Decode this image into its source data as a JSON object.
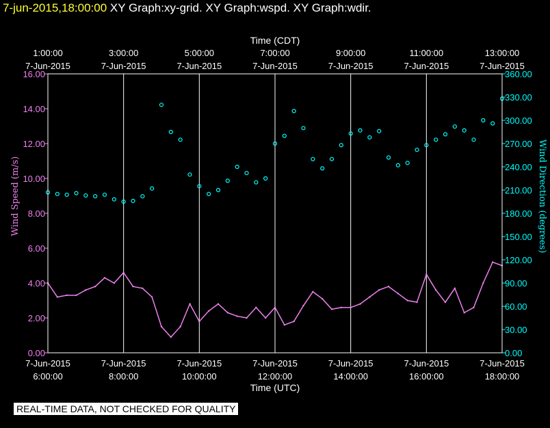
{
  "header": {
    "timestamp": "7-jun-2015,18:00:00",
    "graphs": "XY Graph:xy-grid.  XY Graph:wspd.  XY Graph:wdir."
  },
  "footer": {
    "disclaimer": "REAL-TIME DATA, NOT CHECKED FOR QUALITY"
  },
  "colors": {
    "background": "#000000",
    "frame": "#ffffff",
    "grid": "#ffffff",
    "wind_speed": "#ee82ee",
    "wind_direction": "#00ffff",
    "header_timestamp": "#ffff33"
  },
  "chart_data": {
    "type": "line",
    "title": "",
    "grid": true,
    "x_top": {
      "label": "Time (CDT)",
      "ticks": [
        {
          "time": "1:00:00",
          "date": "7-Jun-2015"
        },
        {
          "time": "3:00:00",
          "date": "7-Jun-2015"
        },
        {
          "time": "5:00:00",
          "date": "7-Jun-2015"
        },
        {
          "time": "7:00:00",
          "date": "7-Jun-2015"
        },
        {
          "time": "9:00:00",
          "date": "7-Jun-2015"
        },
        {
          "time": "11:00:00",
          "date": "7-Jun-2015"
        },
        {
          "time": "13:00:00",
          "date": "7-Jun-2015"
        }
      ]
    },
    "x_bottom": {
      "label": "Time (UTC)",
      "ticks": [
        {
          "time": "6:00:00",
          "date": "7-Jun-2015"
        },
        {
          "time": "8:00:00",
          "date": "7-Jun-2015"
        },
        {
          "time": "10:00:00",
          "date": "7-Jun-2015"
        },
        {
          "time": "12:00:00",
          "date": "7-Jun-2015"
        },
        {
          "time": "14:00:00",
          "date": "7-Jun-2015"
        },
        {
          "time": "16:00:00",
          "date": "7-Jun-2015"
        },
        {
          "time": "18:00:00",
          "date": "7-Jun-2015"
        }
      ]
    },
    "x_range_utc_hours": [
      6,
      18
    ],
    "y_left": {
      "label": "Wind Speed (m/s)",
      "range": [
        0,
        16
      ],
      "ticks": [
        "0.00",
        "2.00",
        "4.00",
        "6.00",
        "8.00",
        "10.00",
        "12.00",
        "14.00",
        "16.00"
      ]
    },
    "y_right": {
      "label": "Wind Direction (degrees)",
      "range": [
        0,
        360
      ],
      "ticks": [
        "0.00",
        "30.00",
        "60.00",
        "90.00",
        "120.00",
        "150.00",
        "180.00",
        "210.00",
        "240.00",
        "270.00",
        "300.00",
        "330.00",
        "360.00"
      ]
    },
    "series": [
      {
        "name": "Wind Speed (m/s)",
        "axis": "left",
        "style": "line",
        "x_utc_hours": [
          6.0,
          6.25,
          6.5,
          6.75,
          7.0,
          7.25,
          7.5,
          7.75,
          8.0,
          8.25,
          8.5,
          8.75,
          9.0,
          9.25,
          9.5,
          9.75,
          10.0,
          10.25,
          10.5,
          10.75,
          11.0,
          11.25,
          11.5,
          11.75,
          12.0,
          12.25,
          12.5,
          12.75,
          13.0,
          13.25,
          13.5,
          13.75,
          14.0,
          14.25,
          14.5,
          14.75,
          15.0,
          15.25,
          15.5,
          15.75,
          16.0,
          16.25,
          16.5,
          16.75,
          17.0,
          17.25,
          17.5,
          17.75,
          18.0
        ],
        "values": [
          4.0,
          3.2,
          3.3,
          3.3,
          3.6,
          3.8,
          4.3,
          4.0,
          4.6,
          3.8,
          3.7,
          3.2,
          1.5,
          0.9,
          1.5,
          2.8,
          1.8,
          2.4,
          2.8,
          2.3,
          2.1,
          2.0,
          2.6,
          2.0,
          2.6,
          1.6,
          1.8,
          2.7,
          3.5,
          3.1,
          2.5,
          2.6,
          2.6,
          2.8,
          3.2,
          3.6,
          3.8,
          3.4,
          3.0,
          2.9,
          4.5,
          3.6,
          2.9,
          3.7,
          2.3,
          2.6,
          4.0,
          5.2,
          5.0
        ]
      },
      {
        "name": "Wind Direction (degrees)",
        "axis": "right",
        "style": "markers",
        "x_utc_hours": [
          6.0,
          6.25,
          6.5,
          6.75,
          7.0,
          7.25,
          7.5,
          7.75,
          8.0,
          8.25,
          8.5,
          8.75,
          9.0,
          9.25,
          9.5,
          9.75,
          10.0,
          10.25,
          10.5,
          10.75,
          11.0,
          11.25,
          11.5,
          11.75,
          12.0,
          12.25,
          12.5,
          12.75,
          13.0,
          13.25,
          13.5,
          13.75,
          14.0,
          14.25,
          14.5,
          14.75,
          15.0,
          15.25,
          15.5,
          15.75,
          16.0,
          16.25,
          16.5,
          16.75,
          17.0,
          17.25,
          17.5,
          17.75,
          18.0
        ],
        "values": [
          207,
          205,
          204,
          206,
          203,
          202,
          204,
          198,
          195,
          196,
          202,
          212,
          320,
          285,
          275,
          230,
          215,
          205,
          210,
          222,
          240,
          232,
          220,
          225,
          270,
          280,
          312,
          290,
          250,
          238,
          250,
          268,
          283,
          287,
          278,
          286,
          252,
          242,
          245,
          262,
          268,
          275,
          282,
          292,
          287,
          275,
          300,
          296,
          328
        ]
      }
    ]
  }
}
